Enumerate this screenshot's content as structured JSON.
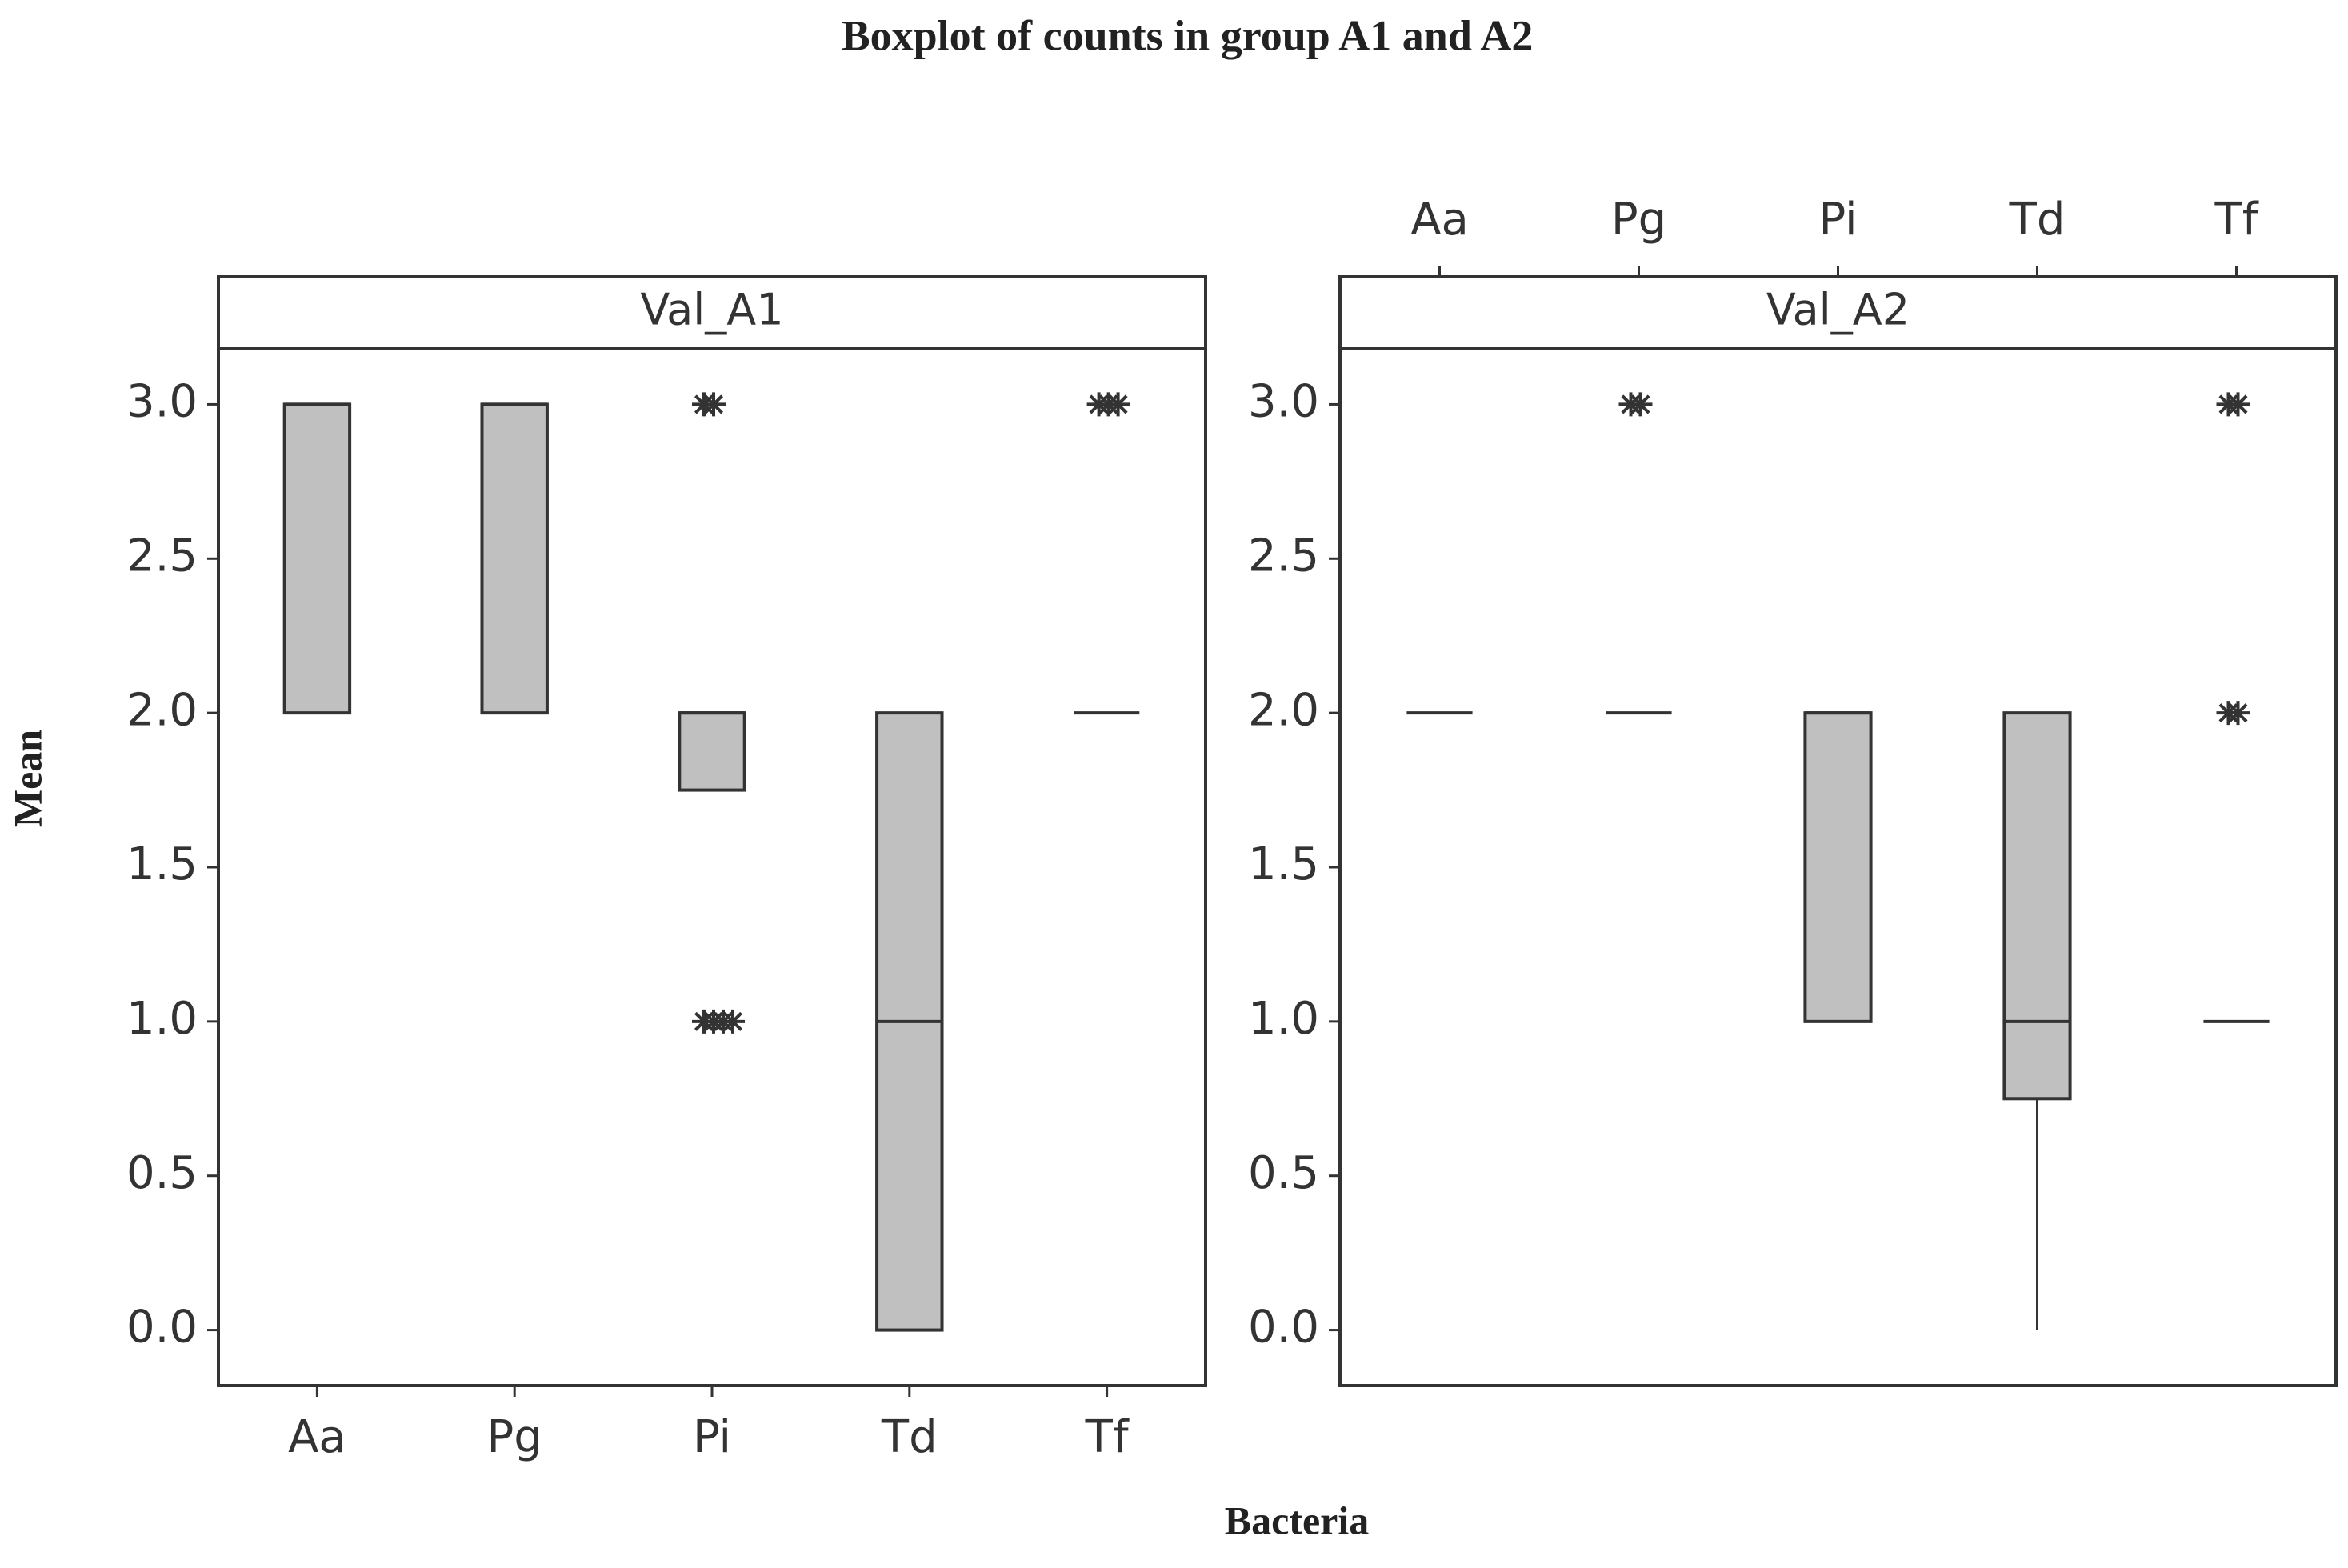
{
  "chart_data": {
    "type": "boxplot",
    "title": "Boxplot of  counts in group A1 and A2",
    "x_label": "Bacteria",
    "y_label": "Mean",
    "box_color": "#c0c0c0",
    "panels": [
      {
        "name": "Val_A1",
        "x_axis": "bottom",
        "categories": [
          "Aa",
          "Pg",
          "Pi",
          "Td",
          "Tf"
        ],
        "ylim": [
          -0.18,
          3.18
        ],
        "yticks": [
          {
            "value": 0,
            "label": "0.0"
          },
          0.5,
          {
            "value": 1,
            "label": "1.0"
          },
          1.5,
          {
            "value": 2,
            "label": "2.0"
          },
          2.5,
          {
            "value": 3,
            "label": "3.0"
          }
        ],
        "boxes": [
          {
            "low": 2,
            "q1": 2,
            "median": 3,
            "q3": 3,
            "high": 3,
            "outliers": []
          },
          {
            "low": 2,
            "q1": 2,
            "median": 3,
            "q3": 3,
            "high": 3,
            "outliers": []
          },
          {
            "low": 1.75,
            "q1": 1.75,
            "median": 2,
            "q3": 2,
            "high": 2,
            "outliers": [
              3,
              3,
              1,
              1,
              1,
              1
            ]
          },
          {
            "low": 0,
            "q1": 0,
            "median": 1,
            "q3": 2,
            "high": 2,
            "outliers": []
          },
          {
            "low": 2,
            "q1": 2,
            "median": 2,
            "q3": 2,
            "high": 2,
            "outliers": [
              3,
              3,
              3
            ]
          }
        ]
      },
      {
        "name": "Val_A2",
        "x_axis": "top",
        "categories": [
          "Aa",
          "Pg",
          "Pi",
          "Td",
          "Tf"
        ],
        "ylim": [
          -0.18,
          3.18
        ],
        "yticks": [
          {
            "value": 0,
            "label": "0.0"
          },
          0.5,
          {
            "value": 1,
            "label": "1.0"
          },
          1.5,
          {
            "value": 2,
            "label": "2.0"
          },
          2.5,
          {
            "value": 3,
            "label": "3.0"
          }
        ],
        "boxes": [
          {
            "low": 2,
            "q1": 2,
            "median": 2,
            "q3": 2,
            "high": 2,
            "outliers": []
          },
          {
            "low": 2,
            "q1": 2,
            "median": 2,
            "q3": 2,
            "high": 2,
            "outliers": [
              3,
              3
            ]
          },
          {
            "low": 1,
            "q1": 1,
            "median": 2,
            "q3": 2,
            "high": 2,
            "outliers": []
          },
          {
            "low": 0,
            "q1": 0.75,
            "median": 1,
            "q3": 2,
            "high": 2,
            "outliers": []
          },
          {
            "low": 1,
            "q1": 1,
            "median": 1,
            "q3": 1,
            "high": 1,
            "outliers": [
              3,
              3,
              2,
              2
            ]
          }
        ]
      }
    ]
  }
}
